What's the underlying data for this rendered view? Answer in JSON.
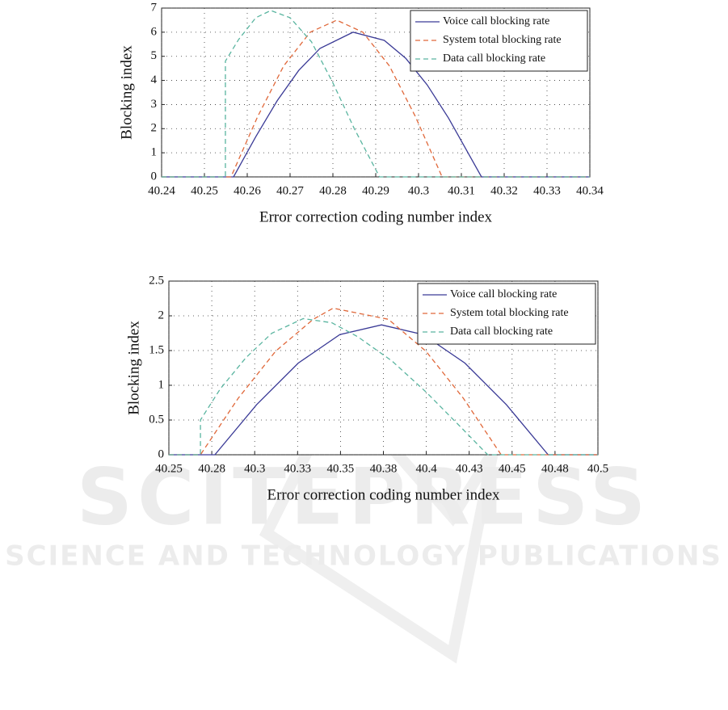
{
  "watermark": {
    "brand": "SCITEPRESS",
    "tagline": "SCIENCE AND TECHNOLOGY PUBLICATIONS"
  },
  "chart_data": [
    {
      "type": "line",
      "xlabel": "Error correction coding number index",
      "ylabel": "Blocking index",
      "xlim": [
        40.24,
        40.34
      ],
      "xticks": [
        40.24,
        40.25,
        40.26,
        40.27,
        40.28,
        40.29,
        40.3,
        40.31,
        40.32,
        40.33,
        40.34
      ],
      "ylim": [
        0,
        7
      ],
      "yticks": [
        0,
        1,
        2,
        3,
        4,
        5,
        6,
        7
      ],
      "grid": true,
      "legend": "upper right",
      "series": [
        {
          "name": "Voice call blocking rate",
          "color": "#3a3a96",
          "linestyle": "solid",
          "x": [
            40.24,
            40.2568,
            40.262,
            40.267,
            40.272,
            40.277,
            40.2847,
            40.292,
            40.297,
            40.302,
            40.307,
            40.3147,
            40.34
          ],
          "values": [
            0,
            0,
            1.67,
            3.16,
            4.41,
            5.33,
            6,
            5.66,
            4.92,
            3.82,
            2.44,
            0,
            0
          ]
        },
        {
          "name": "System total blocking rate",
          "color": "#e0683a",
          "linestyle": "dashed",
          "x": [
            40.24,
            40.2562,
            40.2624,
            40.2685,
            40.2747,
            40.2809,
            40.287,
            40.2932,
            40.2993,
            40.3055,
            40.34
          ],
          "values": [
            0,
            0,
            2.49,
            4.6,
            6.0,
            6.5,
            6.0,
            4.6,
            2.49,
            0,
            0
          ]
        },
        {
          "name": "Data call blocking rate",
          "color": "#5ab5a0",
          "linestyle": "dashed",
          "x": [
            40.24,
            40.2549,
            40.2549,
            40.258,
            40.262,
            40.2655,
            40.27,
            40.275,
            40.28,
            40.285,
            40.2909,
            40.34
          ],
          "values": [
            0,
            0,
            4.8,
            5.7,
            6.6,
            6.9,
            6.6,
            5.6,
            3.9,
            2.0,
            0,
            0
          ]
        }
      ]
    },
    {
      "type": "line",
      "xlabel": "Error correction coding number index",
      "ylabel": "Blocking index",
      "xlim": [
        40.25,
        40.5
      ],
      "xticks": [
        {
          "value": 40.25,
          "label": "40.25"
        },
        {
          "value": 40.275,
          "label": "40.28"
        },
        {
          "value": 40.3,
          "label": "40.3"
        },
        {
          "value": 40.325,
          "label": "40.33"
        },
        {
          "value": 40.35,
          "label": "40.35"
        },
        {
          "value": 40.375,
          "label": "40.38"
        },
        {
          "value": 40.4,
          "label": "40.4"
        },
        {
          "value": 40.425,
          "label": "40.43"
        },
        {
          "value": 40.45,
          "label": "40.45"
        },
        {
          "value": 40.475,
          "label": "40.48"
        },
        {
          "value": 40.5,
          "label": "40.5"
        }
      ],
      "ylim": [
        0,
        2.5
      ],
      "yticks": [
        0,
        0.5,
        1,
        1.5,
        2,
        2.5
      ],
      "grid": true,
      "legend": "upper right",
      "series": [
        {
          "name": "Voice call blocking rate",
          "color": "#3a3a96",
          "linestyle": "solid",
          "x": [
            40.25,
            40.2768,
            40.3011,
            40.3254,
            40.3496,
            40.3739,
            40.3982,
            40.4225,
            40.4467,
            40.471,
            40.5
          ],
          "values": [
            0,
            0,
            0.72,
            1.32,
            1.73,
            1.87,
            1.73,
            1.32,
            0.72,
            0,
            0
          ]
        },
        {
          "name": "System total blocking rate",
          "color": "#e0683a",
          "linestyle": "dashed",
          "x": [
            40.25,
            40.2684,
            40.2903,
            40.3122,
            40.3341,
            40.3457,
            40.3779,
            40.3998,
            40.4217,
            40.4436,
            40.5
          ],
          "values": [
            0,
            0,
            0.81,
            1.49,
            1.95,
            2.11,
            1.95,
            1.49,
            0.81,
            0,
            0
          ]
        },
        {
          "name": "Data call blocking rate",
          "color": "#5ab5a0",
          "linestyle": "dashed",
          "x": [
            40.25,
            40.2684,
            40.2684,
            40.28,
            40.295,
            40.31,
            40.3283,
            40.345,
            40.36,
            40.38,
            40.4,
            40.42,
            40.4358,
            40.5
          ],
          "values": [
            0,
            0,
            0.5,
            0.95,
            1.4,
            1.75,
            1.96,
            1.9,
            1.7,
            1.35,
            0.9,
            0.4,
            0,
            0
          ]
        }
      ]
    }
  ]
}
